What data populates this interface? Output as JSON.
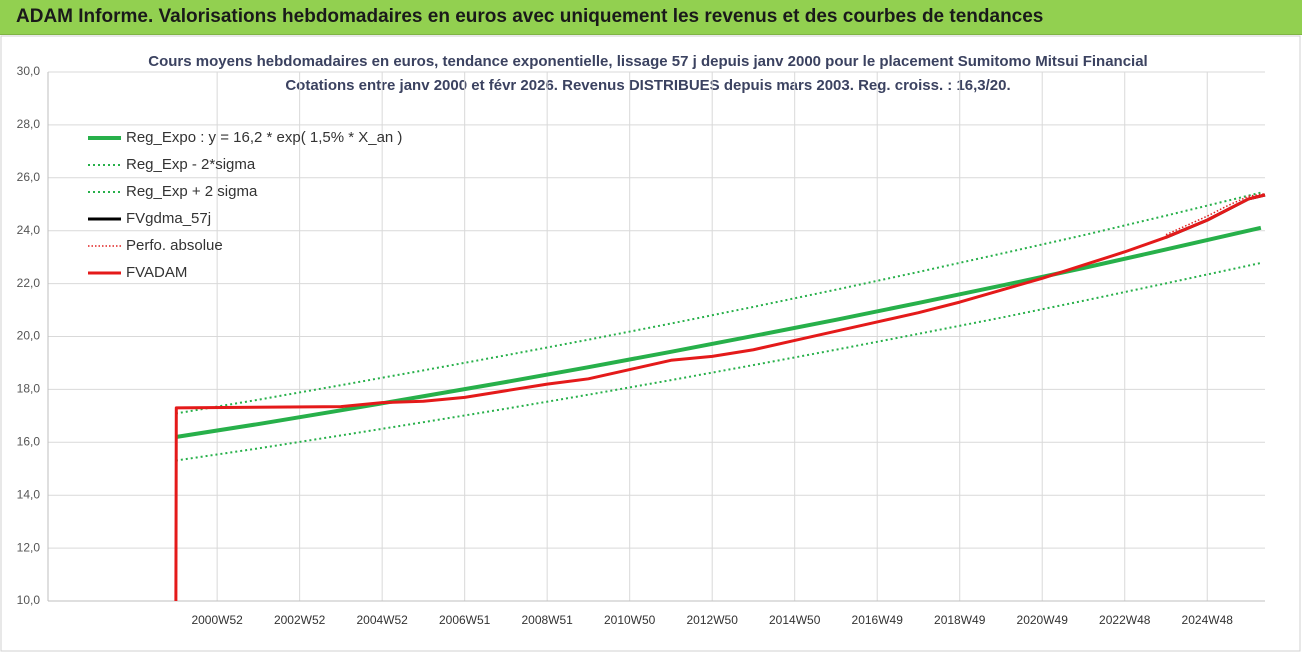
{
  "header": {
    "title": "ADAM Informe. Valorisations hebdomadaires en euros avec uniquement les revenus et des courbes de tendances"
  },
  "chart_data": {
    "type": "line",
    "title": "Cours moyens hebdomadaires en euros, tendance exponentielle, lissage 57 j depuis janv 2000 pour le placement Sumitomo Mitsui Financial",
    "subtitle": "Cotations entre janv 2000 et févr 2026. Revenus DISTRIBUES depuis mars 2003. Reg. croiss. : 16,3/20.",
    "xlim": [
      1996.9,
      2026.4
    ],
    "xticks": [
      {
        "value": 2001.0,
        "label": "2000W52"
      },
      {
        "value": 2003.0,
        "label": "2002W52"
      },
      {
        "value": 2005.0,
        "label": "2004W52"
      },
      {
        "value": 2007.0,
        "label": "2006W51"
      },
      {
        "value": 2009.0,
        "label": "2008W51"
      },
      {
        "value": 2011.0,
        "label": "2010W50"
      },
      {
        "value": 2013.0,
        "label": "2012W50"
      },
      {
        "value": 2015.0,
        "label": "2014W50"
      },
      {
        "value": 2017.0,
        "label": "2016W49"
      },
      {
        "value": 2019.0,
        "label": "2018W49"
      },
      {
        "value": 2021.0,
        "label": "2020W49"
      },
      {
        "value": 2023.0,
        "label": "2022W48"
      },
      {
        "value": 2025.0,
        "label": "2024W48"
      }
    ],
    "ylim": [
      10,
      30
    ],
    "yticks": [
      {
        "value": 10,
        "label": "10,0"
      },
      {
        "value": 12,
        "label": "12,0"
      },
      {
        "value": 14,
        "label": "14,0"
      },
      {
        "value": 16,
        "label": "16,0"
      },
      {
        "value": 18,
        "label": "18,0"
      },
      {
        "value": 20,
        "label": "20,0"
      },
      {
        "value": 22,
        "label": "22,0"
      },
      {
        "value": 24,
        "label": "24,0"
      },
      {
        "value": 26,
        "label": "26,0"
      },
      {
        "value": 28,
        "label": "28,0"
      },
      {
        "value": 30,
        "label": "30,0"
      }
    ],
    "grid": true,
    "legend": "top-left",
    "series": [
      {
        "name": "Reg_Expo : y = 16,2 * exp( 1,5% *  X_an )",
        "color": "#27b04a",
        "style": "solid",
        "width": 4,
        "x": [
          2000,
          2002,
          2004,
          2006,
          2008,
          2010,
          2012,
          2014,
          2016,
          2018,
          2020,
          2022,
          2024,
          2026.3
        ],
        "values": [
          16.2,
          16.69,
          17.21,
          17.74,
          18.28,
          18.84,
          19.42,
          20.02,
          20.63,
          21.27,
          21.92,
          22.59,
          23.29,
          24.11
        ]
      },
      {
        "name": "Reg_Exp - 2*sigma",
        "color": "#27b04a",
        "style": "dotted",
        "width": 2,
        "x": [
          2000,
          2002,
          2004,
          2006,
          2008,
          2010,
          2012,
          2014,
          2016,
          2018,
          2020,
          2022,
          2024,
          2026.3
        ],
        "values": [
          15.31,
          15.77,
          16.26,
          16.76,
          17.27,
          17.8,
          18.35,
          18.92,
          19.5,
          20.1,
          20.71,
          21.35,
          22.01,
          22.78
        ]
      },
      {
        "name": "Reg_Exp + 2 sigma",
        "color": "#27b04a",
        "style": "dotted",
        "width": 2,
        "x": [
          2000,
          2002,
          2004,
          2006,
          2008,
          2010,
          2012,
          2014,
          2016,
          2018,
          2020,
          2022,
          2024,
          2026.3
        ],
        "values": [
          17.09,
          17.61,
          18.16,
          18.72,
          19.29,
          19.88,
          20.49,
          21.12,
          21.77,
          22.44,
          23.13,
          23.83,
          24.57,
          25.44
        ]
      },
      {
        "name": "FVgdma_57j",
        "color": "#000000",
        "style": "solid",
        "width": 3,
        "x": [
          2024,
          2025,
          2026,
          2026.4
        ],
        "values": [
          23.75,
          24.4,
          25.2,
          25.35
        ]
      },
      {
        "name": "Perfo. absolue",
        "color": "#e02020",
        "style": "dotted",
        "width": 1.5,
        "x": [
          2024,
          2025,
          2025.5,
          2026,
          2026.4
        ],
        "values": [
          23.85,
          24.55,
          24.95,
          25.3,
          25.4
        ]
      },
      {
        "name": "FVADAM",
        "color": "#e41a1a",
        "style": "solid",
        "width": 3,
        "x": [
          2000,
          2000.01,
          2004,
          2005,
          2006,
          2007,
          2008,
          2009,
          2010,
          2011,
          2012,
          2013,
          2014,
          2015,
          2016,
          2017,
          2018,
          2019,
          2020,
          2021,
          2022,
          2023,
          2024,
          2025,
          2026,
          2026.4
        ],
        "values": [
          10,
          17.3,
          17.35,
          17.5,
          17.55,
          17.7,
          17.95,
          18.2,
          18.4,
          18.75,
          19.1,
          19.25,
          19.5,
          19.85,
          20.2,
          20.55,
          20.9,
          21.3,
          21.75,
          22.2,
          22.7,
          23.2,
          23.75,
          24.4,
          25.2,
          25.35
        ]
      }
    ]
  }
}
